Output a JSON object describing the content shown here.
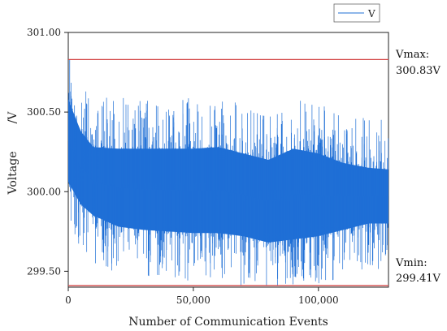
{
  "chart_data": {
    "type": "line",
    "xlabel": "Number of Communication Events",
    "ylabel": "Voltage",
    "yunit": "/V",
    "xlim": [
      0,
      128000
    ],
    "ylim": [
      299.4,
      301.0
    ],
    "x_ticks": [
      0,
      50000,
      100000
    ],
    "x_tick_labels": [
      "0",
      "50,000",
      "100,000"
    ],
    "y_ticks": [
      299.5,
      300.0,
      300.5,
      301.0
    ],
    "y_tick_labels": [
      "299.50",
      "300.00",
      "300.50",
      "301.00"
    ],
    "legend": "top-right",
    "grid": false,
    "series": [
      {
        "name": "V",
        "color": "#1f6fd6",
        "x": [
          0,
          5000,
          10000,
          20000,
          30000,
          40000,
          50000,
          60000,
          70000,
          80000,
          90000,
          100000,
          110000,
          120000,
          128000
        ],
        "band_high": [
          300.58,
          300.38,
          300.28,
          300.27,
          300.27,
          300.27,
          300.27,
          300.28,
          300.24,
          300.2,
          300.27,
          300.24,
          300.18,
          300.15,
          300.14
        ],
        "band_low": [
          300.06,
          299.92,
          299.85,
          299.78,
          299.76,
          299.75,
          299.74,
          299.74,
          299.72,
          299.68,
          299.7,
          299.72,
          299.76,
          299.8,
          299.8
        ],
        "spike_max": 300.83,
        "spike_min": 299.41
      }
    ],
    "reference_lines": [
      {
        "value": 300.83,
        "color": "#d44848",
        "label_top": "Vmax:",
        "label_bottom": "300.83V"
      },
      {
        "value": 299.41,
        "color": "#d44848",
        "label_top": "Vmin:",
        "label_bottom": "299.41V"
      }
    ]
  }
}
